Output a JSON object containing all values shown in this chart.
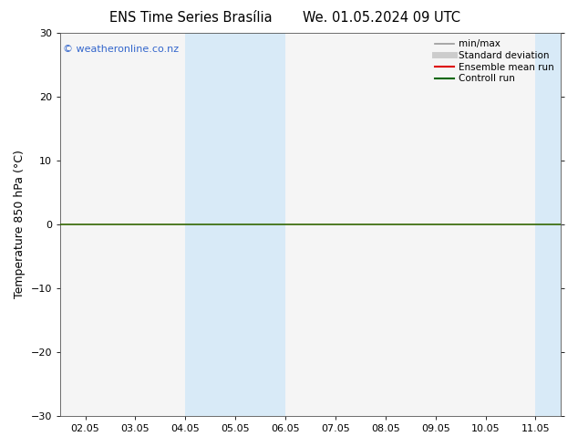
{
  "title": "ENS Time Series Brasília",
  "title2": "We. 01.05.2024 09 UTC",
  "ylabel": "Temperature 850 hPa (°C)",
  "watermark": "© weatheronline.co.nz",
  "watermark_color": "#3366cc",
  "ylim": [
    -30,
    30
  ],
  "yticks": [
    -30,
    -20,
    -10,
    0,
    10,
    20,
    30
  ],
  "xtick_labels": [
    "02.05",
    "03.05",
    "04.05",
    "05.05",
    "06.05",
    "07.05",
    "08.05",
    "09.05",
    "10.05",
    "11.05"
  ],
  "xtick_positions": [
    0,
    1,
    2,
    3,
    4,
    5,
    6,
    7,
    8,
    9
  ],
  "shade_bands": [
    {
      "xmin": 2,
      "xmax": 3,
      "color": "#d8eaf7"
    },
    {
      "xmin": 3,
      "xmax": 4,
      "color": "#d8eaf7"
    },
    {
      "xmin": 9,
      "xmax": 9.5,
      "color": "#d8eaf7"
    }
  ],
  "hline_y": 0,
  "hline_color": "#336600",
  "legend_items": [
    {
      "label": "min/max",
      "color": "#999999",
      "lw": 1.2,
      "type": "line"
    },
    {
      "label": "Standard deviation",
      "color": "#cccccc",
      "lw": 5,
      "type": "line"
    },
    {
      "label": "Ensemble mean run",
      "color": "#dd0000",
      "lw": 1.5,
      "type": "line"
    },
    {
      "label": "Controll run",
      "color": "#006600",
      "lw": 1.5,
      "type": "line"
    }
  ],
  "bg_color": "#ffffff",
  "plot_bg_color": "#f5f5f5",
  "title_fontsize": 10.5,
  "label_fontsize": 9,
  "tick_fontsize": 8,
  "watermark_fontsize": 8
}
